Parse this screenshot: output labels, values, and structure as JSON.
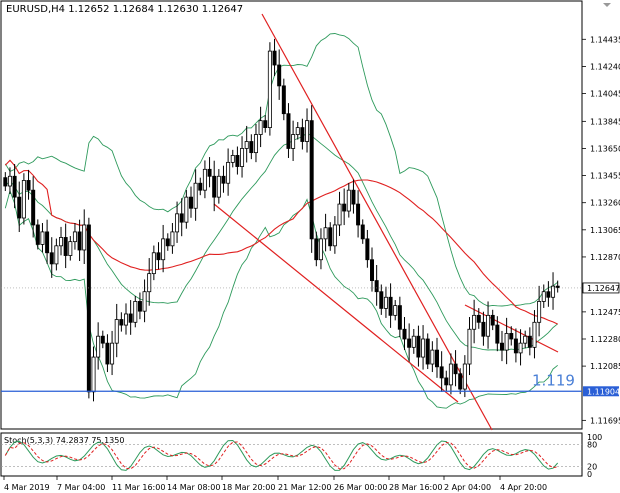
{
  "header": {
    "symbol_line": "EURUSD,H4  1.12652 1.12684 1.12630 1.12647"
  },
  "price_axis": {
    "ticks": [
      "1.14435",
      "1.14240",
      "1.14045",
      "1.13845",
      "1.13650",
      "1.13455",
      "1.13260",
      "1.13065",
      "1.12870",
      "1.12475",
      "1.12280",
      "1.12085",
      "1.11695"
    ],
    "current_price_label": "1.12647",
    "hline_price_label": "1.11904"
  },
  "annotation": {
    "text": "1.119"
  },
  "stoch": {
    "label": "Stoch(5,3,3) 74.2837 75.1350",
    "levels": [
      "100",
      "80",
      "20",
      "0"
    ]
  },
  "time_axis": {
    "labels": [
      "4 Mar 2019",
      "7 Mar 04:00",
      "11 Mar 16:00",
      "14 Mar 08:00",
      "18 Mar 20:00",
      "21 Mar 12:00",
      "26 Mar 00:00",
      "28 Mar 16:00",
      "2 Apr 04:00",
      "4 Apr 20:00"
    ]
  },
  "colors": {
    "candles": "#000000",
    "bollinger": "#2e9a5c",
    "ma": "#e02020",
    "trendline": "#e02020",
    "hline": "#2a5fd6",
    "stoch_main": "#2e9a5c",
    "stoch_signal": "#e02020"
  },
  "chart_data": {
    "type": "candlestick",
    "symbol": "EURUSD",
    "timeframe": "H4",
    "ohlc_last": {
      "open": 1.12652,
      "high": 1.12684,
      "low": 1.1263,
      "close": 1.12647
    },
    "y_range": [
      1.1164,
      1.1466
    ],
    "horizontal_line": 1.11904,
    "closes": [
      1.1338,
      1.1345,
      1.133,
      1.1315,
      1.1342,
      1.1335,
      1.131,
      1.1296,
      1.1305,
      1.129,
      1.1282,
      1.1295,
      1.1301,
      1.1288,
      1.1298,
      1.1305,
      1.1292,
      1.131,
      1.119,
      1.1215,
      1.123,
      1.1225,
      1.121,
      1.1225,
      1.1242,
      1.1238,
      1.1246,
      1.124,
      1.1255,
      1.1248,
      1.1262,
      1.1275,
      1.129,
      1.1285,
      1.13,
      1.1295,
      1.1305,
      1.1318,
      1.1312,
      1.133,
      1.1322,
      1.134,
      1.1335,
      1.135,
      1.1345,
      1.133,
      1.1345,
      1.134,
      1.1355,
      1.136,
      1.1352,
      1.1365,
      1.137,
      1.1362,
      1.1375,
      1.1385,
      1.138,
      1.1435,
      1.1425,
      1.141,
      1.139,
      1.1365,
      1.1375,
      1.138,
      1.137,
      1.1385,
      1.13,
      1.1285,
      1.13,
      1.1308,
      1.1295,
      1.131,
      1.1325,
      1.132,
      1.1335,
      1.1325,
      1.131,
      1.13,
      1.1285,
      1.127,
      1.1262,
      1.125,
      1.1258,
      1.1245,
      1.1252,
      1.1235,
      1.1228,
      1.1222,
      1.123,
      1.1215,
      1.1228,
      1.121,
      1.122,
      1.1208,
      1.12,
      1.1195,
      1.121,
      1.1203,
      1.1192,
      1.121,
      1.1235,
      1.1245,
      1.124,
      1.123,
      1.1245,
      1.1238,
      1.1225,
      1.122,
      1.1232,
      1.1228,
      1.1218,
      1.1225,
      1.123,
      1.1222,
      1.124,
      1.1255,
      1.1262,
      1.1258,
      1.1266,
      1.1265
    ]
  }
}
